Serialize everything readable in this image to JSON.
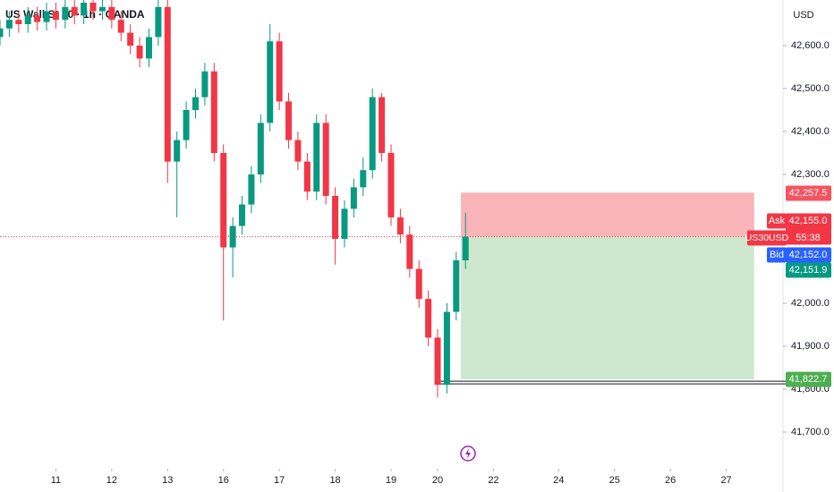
{
  "chart_data": {
    "type": "candlestick",
    "title": "US Wall St 30 · 1h · OANDA",
    "currency": "USD",
    "up_color": "#089981",
    "down_color": "#f23645",
    "x": [
      0,
      1,
      2,
      3,
      4,
      5,
      6,
      7,
      8,
      9,
      10,
      11,
      12,
      13,
      14,
      15,
      16,
      17,
      18,
      19,
      20,
      21,
      22,
      23,
      24,
      25,
      26,
      27,
      28,
      29,
      30,
      31,
      32,
      33,
      34,
      35,
      36,
      37,
      38,
      39,
      40,
      41,
      42,
      43,
      44,
      45,
      46,
      47,
      48,
      49,
      50
    ],
    "open": [
      42620,
      42640,
      42660,
      42650,
      42670,
      42655,
      42680,
      42660,
      42690,
      42670,
      42700,
      42680,
      42690,
      42660,
      42630,
      42600,
      42570,
      42620,
      42690,
      42330,
      42380,
      42450,
      42480,
      42540,
      42350,
      42130,
      42180,
      42230,
      42300,
      42420,
      42610,
      42470,
      42380,
      42330,
      42260,
      42420,
      42250,
      42150,
      42220,
      42270,
      42310,
      42480,
      42350,
      42200,
      42160,
      42080,
      42010,
      41920,
      41810,
      41980,
      42100
    ],
    "high": [
      42660,
      42680,
      42680,
      42690,
      42690,
      42700,
      42700,
      42710,
      42710,
      42720,
      42720,
      42710,
      42710,
      42680,
      42650,
      42620,
      42640,
      42720,
      42710,
      42400,
      42470,
      42500,
      42560,
      42560,
      42370,
      42200,
      42250,
      42320,
      42440,
      42650,
      42630,
      42490,
      42400,
      42350,
      42440,
      42440,
      42270,
      42240,
      42290,
      42340,
      42500,
      42490,
      42370,
      42220,
      42180,
      42100,
      42030,
      41940,
      42000,
      42120,
      42210
    ],
    "low": [
      42600,
      42620,
      42630,
      42630,
      42635,
      42635,
      42640,
      42640,
      42650,
      42650,
      42660,
      42660,
      42640,
      42610,
      42580,
      42550,
      42550,
      42600,
      42280,
      42200,
      42360,
      42430,
      42460,
      42330,
      41960,
      42060,
      42160,
      42210,
      42280,
      42400,
      42450,
      42360,
      42310,
      42240,
      42240,
      42230,
      42090,
      42130,
      42200,
      42250,
      42290,
      42330,
      42180,
      42140,
      42060,
      41990,
      41900,
      41780,
      41790,
      41960,
      42080
    ],
    "close": [
      42640,
      42660,
      42650,
      42670,
      42655,
      42680,
      42660,
      42690,
      42670,
      42700,
      42680,
      42690,
      42660,
      42630,
      42600,
      42570,
      42620,
      42690,
      42330,
      42380,
      42450,
      42480,
      42540,
      42350,
      42130,
      42180,
      42230,
      42300,
      42420,
      42610,
      42470,
      42380,
      42330,
      42260,
      42420,
      42250,
      42150,
      42220,
      42270,
      42310,
      42480,
      42350,
      42200,
      42160,
      42080,
      42010,
      41920,
      41810,
      41980,
      42100,
      42155
    ],
    "xlim": [
      0,
      84
    ],
    "xticks": [
      {
        "value": 6,
        "label": "11"
      },
      {
        "value": 12,
        "label": "12"
      },
      {
        "value": 18,
        "label": "13"
      },
      {
        "value": 24,
        "label": "16"
      },
      {
        "value": 30,
        "label": "17"
      },
      {
        "value": 36,
        "label": "18"
      },
      {
        "value": 42,
        "label": "19"
      },
      {
        "value": 47,
        "label": "20"
      },
      {
        "value": 53,
        "label": "22"
      },
      {
        "value": 60,
        "label": "24"
      },
      {
        "value": 66,
        "label": "25"
      },
      {
        "value": 72,
        "label": "26"
      },
      {
        "value": 78,
        "label": "27"
      }
    ],
    "ylim": [
      41643.75,
      42706.25
    ],
    "yticks": [
      {
        "value": 42600,
        "label": "42,600.0"
      },
      {
        "value": 42500,
        "label": "42,500.0"
      },
      {
        "value": 42400,
        "label": "42,400.0"
      },
      {
        "value": 42300,
        "label": "42,300.0"
      },
      {
        "value": 42000,
        "label": "42,000.0"
      },
      {
        "value": 41900,
        "label": "41,900.0"
      },
      {
        "value": 41800,
        "label": "41,800.0"
      },
      {
        "value": 41700,
        "label": "41,700.0"
      }
    ],
    "position": {
      "x": [
        49.5,
        81
      ],
      "stop": 42257.5,
      "entry": 42155.0,
      "target": 41822.7,
      "stop_color": "#f7a1a8",
      "target_color": "#c8e6c9"
    },
    "price_tags": [
      {
        "label": "42,257.5",
        "value": 42257.5,
        "color": "#f7525f"
      },
      {
        "name": "Ask",
        "label": "42,155.0",
        "value": 42155.0,
        "color": "#f23645"
      },
      {
        "name": "Bid",
        "label": "42,152.0",
        "value": 42152.0,
        "color": "#2962ff"
      },
      {
        "label": "42,151.9",
        "value": 42151.9,
        "color": "#089981"
      },
      {
        "label": "41,822.7",
        "value": 41822.7,
        "color": "#4caf50"
      }
    ],
    "symbol_tag": {
      "name": "US30USD",
      "countdown": "55:38",
      "color": "#f23645"
    }
  }
}
